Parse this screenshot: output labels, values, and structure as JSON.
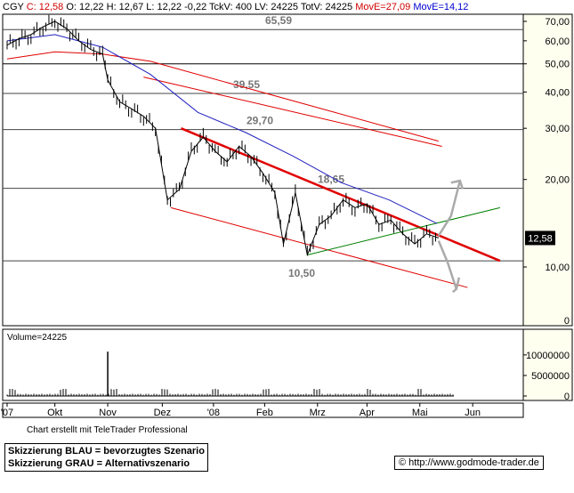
{
  "header": {
    "symbol": "CGY",
    "close": "C: 12,58",
    "open": "O: 12,22",
    "high": "H: 12,67",
    "low": "L: 12,22",
    "change": "-0,22",
    "tickvol": "TckV: 400",
    "lastvol": "LV: 24225",
    "totvol": "TotV: 24225",
    "move": "MovE=27,09",
    "movb": "MovE=14,12"
  },
  "chart_data": {
    "type": "line",
    "title": "",
    "price_scale": "log",
    "ylim": [
      9,
      75
    ],
    "y_ticks": [
      "70,00",
      "60,00",
      "50,00",
      "40,00",
      "30,00",
      "20,00",
      "10,00"
    ],
    "y_zero_tick": "0",
    "x_ticks": [
      "'07",
      "Okt",
      "Nov",
      "Dez",
      "'08",
      "Feb",
      "Mrz",
      "Apr",
      "Mai",
      "Jun"
    ],
    "last_price_label": "12,58",
    "horizontal_levels": [
      {
        "value": 65.59,
        "label": "65,59"
      },
      {
        "value": 50.0,
        "label": ""
      },
      {
        "value": 39.55,
        "label": "39,55"
      },
      {
        "value": 29.7,
        "label": "29,70"
      },
      {
        "value": 18.65,
        "label": "18,65"
      },
      {
        "value": 10.5,
        "label": "10,50"
      }
    ],
    "price_series": [
      [
        "2007-09-03",
        58
      ],
      [
        "2007-09-10",
        61
      ],
      [
        "2007-09-17",
        63
      ],
      [
        "2007-09-24",
        67
      ],
      [
        "2007-10-01",
        70
      ],
      [
        "2007-10-08",
        66
      ],
      [
        "2007-10-15",
        60
      ],
      [
        "2007-10-22",
        56
      ],
      [
        "2007-10-29",
        54
      ],
      [
        "2007-11-01",
        44
      ],
      [
        "2007-11-08",
        37
      ],
      [
        "2007-11-15",
        35
      ],
      [
        "2007-11-22",
        33
      ],
      [
        "2007-11-29",
        30
      ],
      [
        "2007-12-06",
        17
      ],
      [
        "2007-12-13",
        18.5
      ],
      [
        "2007-12-20",
        25
      ],
      [
        "2007-12-27",
        28
      ],
      [
        "2008-01-03",
        25
      ],
      [
        "2008-01-10",
        23
      ],
      [
        "2008-01-17",
        26
      ],
      [
        "2008-01-24",
        24
      ],
      [
        "2008-01-31",
        21
      ],
      [
        "2008-02-07",
        18
      ],
      [
        "2008-02-12",
        12
      ],
      [
        "2008-02-19",
        18
      ],
      [
        "2008-02-26",
        11
      ],
      [
        "2008-03-04",
        14
      ],
      [
        "2008-03-11",
        15
      ],
      [
        "2008-03-18",
        17
      ],
      [
        "2008-03-25",
        16
      ],
      [
        "2008-04-01",
        16.5
      ],
      [
        "2008-04-08",
        14
      ],
      [
        "2008-04-15",
        14.5
      ],
      [
        "2008-04-22",
        13
      ],
      [
        "2008-04-29",
        12
      ],
      [
        "2008-05-06",
        13
      ],
      [
        "2008-05-13",
        12.58
      ]
    ],
    "ma_blue": [
      [
        "2007-09-03",
        60
      ],
      [
        "2007-10-01",
        63
      ],
      [
        "2007-10-29",
        57
      ],
      [
        "2007-11-26",
        46
      ],
      [
        "2007-12-24",
        34
      ],
      [
        "2008-01-21",
        29
      ],
      [
        "2008-02-18",
        24
      ],
      [
        "2008-03-17",
        19.5
      ],
      [
        "2008-04-14",
        17
      ],
      [
        "2008-05-12",
        14.12
      ]
    ],
    "ma_red": [
      [
        "2007-09-03",
        52
      ],
      [
        "2007-10-01",
        55
      ],
      [
        "2007-10-29",
        54
      ],
      [
        "2007-11-26",
        51
      ],
      [
        "2008-05-13",
        27.09
      ]
    ],
    "trendlines": [
      {
        "color": "red",
        "bold": true,
        "from": [
          "2007-12-14",
          30
        ],
        "to": [
          "2008-06-18",
          10.5
        ]
      },
      {
        "color": "red",
        "bold": false,
        "from": [
          "2007-12-08",
          16
        ],
        "to": [
          "2008-05-30",
          8.5
        ]
      },
      {
        "color": "green",
        "bold": false,
        "from": [
          "2008-02-26",
          11
        ],
        "to": [
          "2008-06-18",
          16
        ]
      },
      {
        "color": "red",
        "bold": false,
        "from": [
          "2007-11-22",
          45
        ],
        "to": [
          "2008-05-15",
          26
        ]
      }
    ],
    "volume": {
      "label": "Volume=24225",
      "y_ticks": [
        "10000000",
        "5000000",
        "0"
      ],
      "ylim": [
        0,
        13000000
      ],
      "spike_date": "2007-11-01",
      "spike_value": 10800000
    }
  },
  "footer": {
    "credit": "Chart erstellt mit TeleTrader Professional",
    "legend_blue": "Skizzierung BLAU = bevorzugtes Szenario",
    "legend_grey": "Skizzierung GRAU = Alternativszenario",
    "copyright": "©",
    "url": "http://www.godmode-trader.de"
  }
}
